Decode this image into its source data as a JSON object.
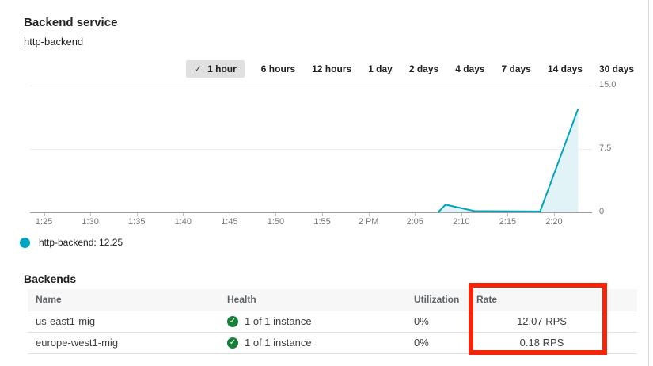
{
  "page": {
    "title": "Backend service",
    "subtitle": "http-backend"
  },
  "icons": {
    "check": "✓",
    "health_check": "✓"
  },
  "timerange": {
    "items": [
      {
        "label": "1 hour",
        "selected": true
      },
      {
        "label": "6 hours",
        "selected": false
      },
      {
        "label": "12 hours",
        "selected": false
      },
      {
        "label": "1 day",
        "selected": false
      },
      {
        "label": "2 days",
        "selected": false
      },
      {
        "label": "4 days",
        "selected": false
      },
      {
        "label": "7 days",
        "selected": false
      },
      {
        "label": "14 days",
        "selected": false
      },
      {
        "label": "30 days",
        "selected": false
      }
    ]
  },
  "chart_data": {
    "type": "area",
    "title": "",
    "series": [
      {
        "name": "http-backend",
        "color": "#00a4bd",
        "fill": "#e1f3f7",
        "points": [
          {
            "t": 67.5,
            "v": 0
          },
          {
            "t": 68.3,
            "v": 0.9
          },
          {
            "t": 71.4,
            "v": 0.15
          },
          {
            "t": 78.5,
            "v": 0.1
          },
          {
            "t": 82.6,
            "v": 12.25
          }
        ]
      }
    ],
    "x_unit": "minutes after 1:00 PM",
    "x_domain": [
      23.5,
      84.1
    ],
    "y_domain": [
      0,
      15
    ],
    "grid": true,
    "legend_position": "bottom-left",
    "y_ticks": [
      {
        "label": "15.0",
        "v": 15
      },
      {
        "label": "7.5",
        "v": 7.5
      },
      {
        "label": "0",
        "v": 0
      }
    ],
    "x_ticks": [
      {
        "label": "1:25",
        "t": 25
      },
      {
        "label": "1:30",
        "t": 30
      },
      {
        "label": "1:35",
        "t": 35
      },
      {
        "label": "1:40",
        "t": 40
      },
      {
        "label": "1:45",
        "t": 45
      },
      {
        "label": "1:50",
        "t": 50
      },
      {
        "label": "1:55",
        "t": 55
      },
      {
        "label": "2 PM",
        "t": 60
      },
      {
        "label": "2:05",
        "t": 65
      },
      {
        "label": "2:10",
        "t": 70
      },
      {
        "label": "2:15",
        "t": 75
      },
      {
        "label": "2:20",
        "t": 80
      }
    ],
    "legend": {
      "label": "http-backend",
      "value": "12.25",
      "text": "http-backend: 12.25"
    }
  },
  "backends": {
    "heading": "Backends",
    "columns": [
      "Name",
      "Health",
      "Utilization",
      "Rate"
    ],
    "rows": [
      {
        "name": "us-east1-mig",
        "health": "1 of 1 instance",
        "utilization": "0%",
        "rate": "12.07 RPS"
      },
      {
        "name": "europe-west1-mig",
        "health": "1 of 1 instance",
        "utilization": "0%",
        "rate": "0.18 RPS"
      }
    ]
  },
  "annotation": {
    "highlight_color": "#f3260b"
  }
}
